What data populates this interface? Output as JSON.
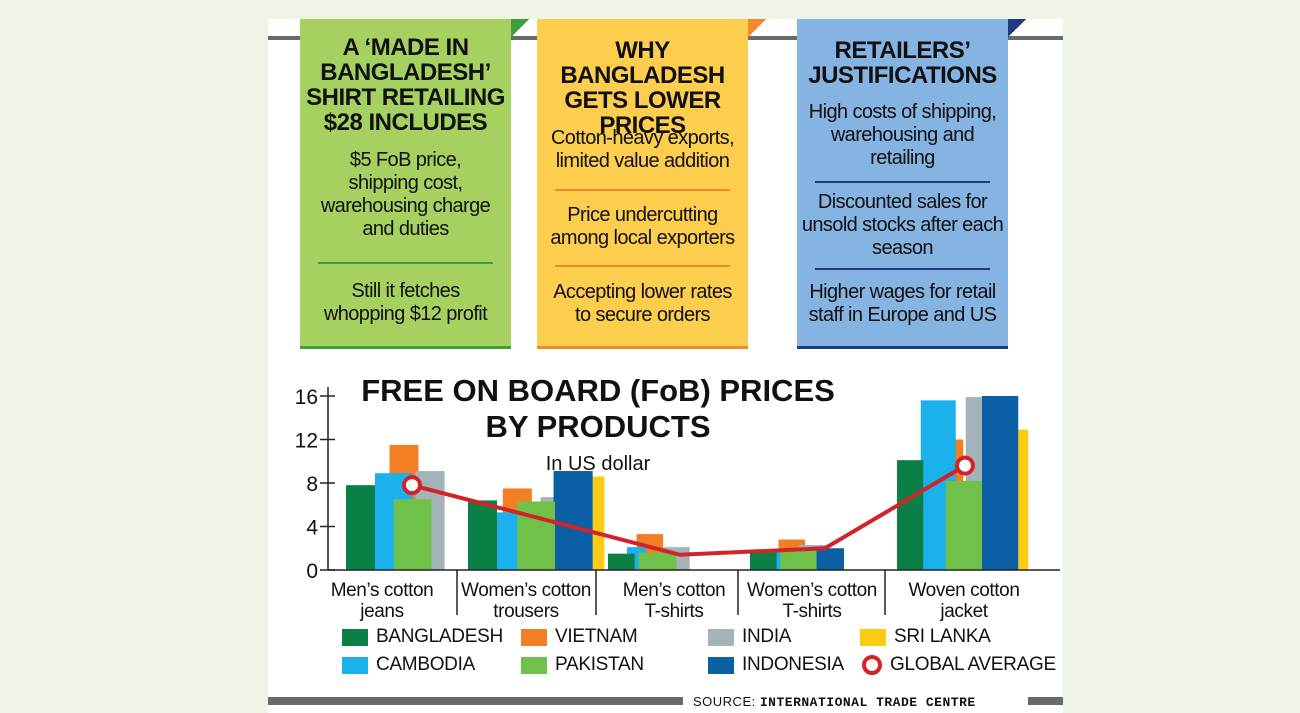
{
  "cards": [
    {
      "title": [
        "A ‘MADE IN",
        "BANGLADESH’",
        "SHIRT RETAILING",
        "$28 INCLUDES"
      ],
      "blocks": [
        [
          "$5 FoB price,",
          "shipping cost,",
          "warehousing charge",
          "and duties"
        ],
        [
          "Still it fetches",
          "whopping $12 profit"
        ]
      ]
    },
    {
      "title": [
        "WHY BANGLADESH",
        "GETS LOWER",
        "PRICES"
      ],
      "blocks": [
        [
          "Cotton-heavy exports,",
          "limited value addition"
        ],
        [
          "Price undercutting",
          "among local exporters"
        ],
        [
          "Accepting lower rates",
          "to secure orders"
        ]
      ]
    },
    {
      "title": [
        "RETAILERS’",
        "JUSTIFICATIONS"
      ],
      "blocks": [
        [
          "High costs of shipping,",
          "warehousing and",
          "retailing"
        ],
        [
          "Discounted sales for",
          "unsold stocks after each",
          "season"
        ],
        [
          "Higher wages for retail",
          "staff in Europe and US"
        ]
      ]
    }
  ],
  "chart_data": {
    "type": "bar",
    "title": [
      "FREE ON BOARD (FoB) PRICES",
      "BY PRODUCTS"
    ],
    "subtitle": "In US dollar",
    "xlabel": "",
    "ylabel": "",
    "ylim": [
      0,
      16
    ],
    "yticks": [
      0,
      4,
      8,
      12,
      16
    ],
    "categories": [
      [
        "Men’s cotton",
        "jeans"
      ],
      [
        "Women’s cotton",
        "trousers"
      ],
      [
        "Men’s cotton",
        "T-shirts"
      ],
      [
        "Women’s cotton",
        "T-shirts"
      ],
      [
        "Woven cotton",
        "jacket"
      ]
    ],
    "series": [
      {
        "name": "BANGLADESH",
        "color": "#0a7f46",
        "values": [
          7.8,
          6.4,
          1.5,
          1.6,
          10.1
        ]
      },
      {
        "name": "CAMBODIA",
        "color": "#1ab1ec",
        "values": [
          8.9,
          5.3,
          2.1,
          1.9,
          15.6
        ]
      },
      {
        "name": "VIETNAM",
        "color": "#f37f25",
        "values": [
          11.5,
          7.5,
          3.3,
          2.8,
          12.0
        ]
      },
      {
        "name": "PAKISTAN",
        "color": "#70c14a",
        "values": [
          6.5,
          6.3,
          1.6,
          1.9,
          8.2
        ]
      },
      {
        "name": "INDIA",
        "color": "#a3b3b9",
        "values": [
          9.1,
          6.7,
          2.1,
          2.3,
          15.9
        ]
      },
      {
        "name": "INDONESIA",
        "color": "#0b5fa4",
        "values": [
          null,
          9.1,
          null,
          2.0,
          16.0
        ]
      },
      {
        "name": "SRI LANKA",
        "color": "#fdcc12",
        "values": [
          null,
          8.6,
          null,
          null,
          12.9
        ]
      }
    ],
    "average": {
      "name": "GLOBAL AVERAGE",
      "color": "#d3232a",
      "values": [
        7.8,
        null,
        1.4,
        2.0,
        9.6
      ]
    },
    "grid": false,
    "legend_position": "bottom"
  },
  "legend": [
    {
      "name": "BANGLADESH",
      "color": "#0a7f46"
    },
    {
      "name": "VIETNAM",
      "color": "#f37f25"
    },
    {
      "name": "INDIA",
      "color": "#a3b3b9"
    },
    {
      "name": "SRI LANKA",
      "color": "#fdcc12"
    },
    {
      "name": "CAMBODIA",
      "color": "#1ab1ec"
    },
    {
      "name": "PAKISTAN",
      "color": "#70c14a"
    },
    {
      "name": "INDONESIA",
      "color": "#0b5fa4"
    },
    {
      "name": "GLOBAL AVERAGE",
      "color": "#d3232a"
    }
  ],
  "source": {
    "label": "SOURCE:",
    "name": "INTERNATIONAL TRADE CENTRE"
  }
}
